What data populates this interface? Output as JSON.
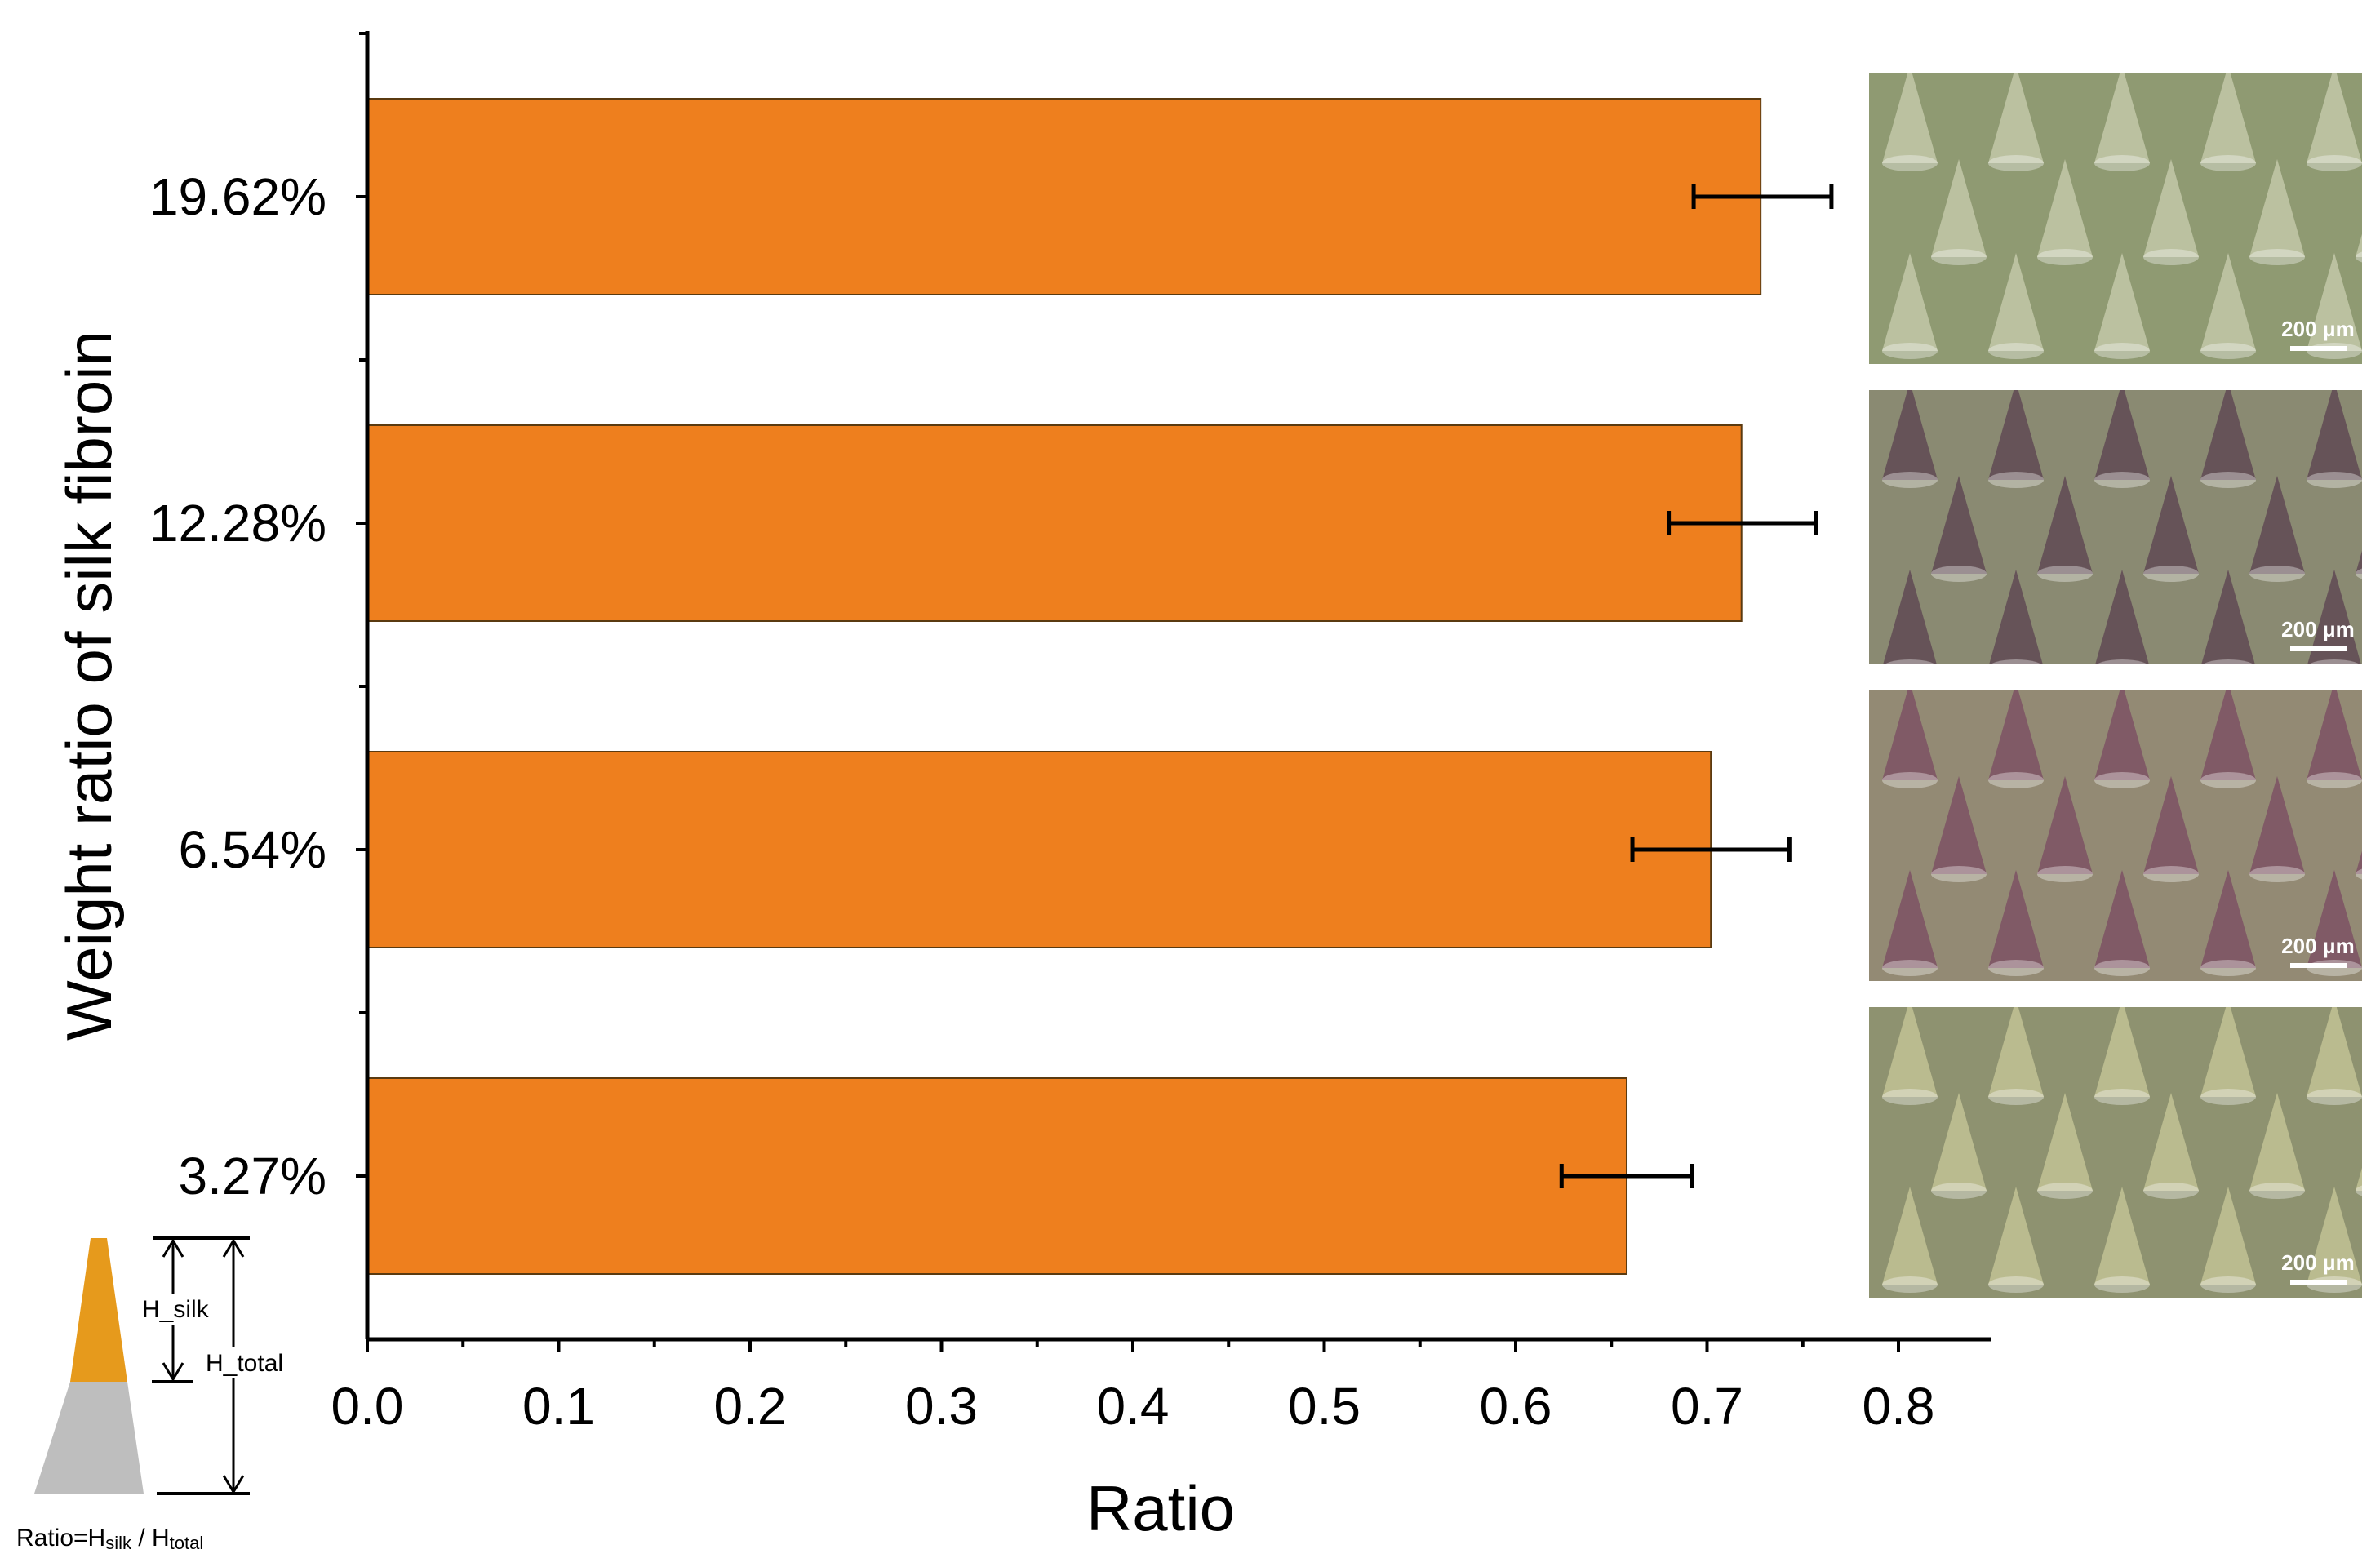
{
  "chart_data": {
    "type": "bar",
    "orientation": "horizontal",
    "categories": [
      "3.27%",
      "6.54%",
      "12.28%",
      "19.62%"
    ],
    "values": [
      0.658,
      0.702,
      0.718,
      0.728
    ],
    "errors": [
      {
        "low": 0.624,
        "high": 0.692
      },
      {
        "low": 0.661,
        "high": 0.743
      },
      {
        "low": 0.68,
        "high": 0.757
      },
      {
        "low": 0.693,
        "high": 0.765
      }
    ],
    "xlabel": "Ratio",
    "ylabel": "Weight ratio of silk fibroin",
    "xlim": [
      0,
      0.85
    ],
    "xticks": [
      0.0,
      0.1,
      0.2,
      0.3,
      0.4,
      0.5,
      0.6,
      0.7,
      0.8
    ],
    "xtick_labels": [
      "0.0",
      "0.1",
      "0.2",
      "0.3",
      "0.4",
      "0.5",
      "0.6",
      "0.7",
      "0.8"
    ],
    "bar_color": "#EE7F1E",
    "grid": false
  },
  "micrographs": [
    {
      "category": "19.62%",
      "scale_bar": "200 μm",
      "background": "#8f9a72",
      "cone_color": "#c9cdb0"
    },
    {
      "category": "12.28%",
      "scale_bar": "200 μm",
      "background": "#8a8a72",
      "cone_color": "#5a4050"
    },
    {
      "category": "6.54%",
      "scale_bar": "200 μm",
      "background": "#938a74",
      "cone_color": "#7a4a62"
    },
    {
      "category": "3.27%",
      "scale_bar": "200 μm",
      "background": "#8e9270",
      "cone_color": "#c8c89a"
    }
  ],
  "schematic": {
    "silk_label": "H_silk",
    "total_label": "H_total",
    "formula_prefix": "Ratio=H",
    "formula_silk_sub": "silk",
    "formula_mid": " / H",
    "formula_total_sub": "total",
    "silk_color": "#E69A1C",
    "base_color": "#BEBEBE"
  }
}
